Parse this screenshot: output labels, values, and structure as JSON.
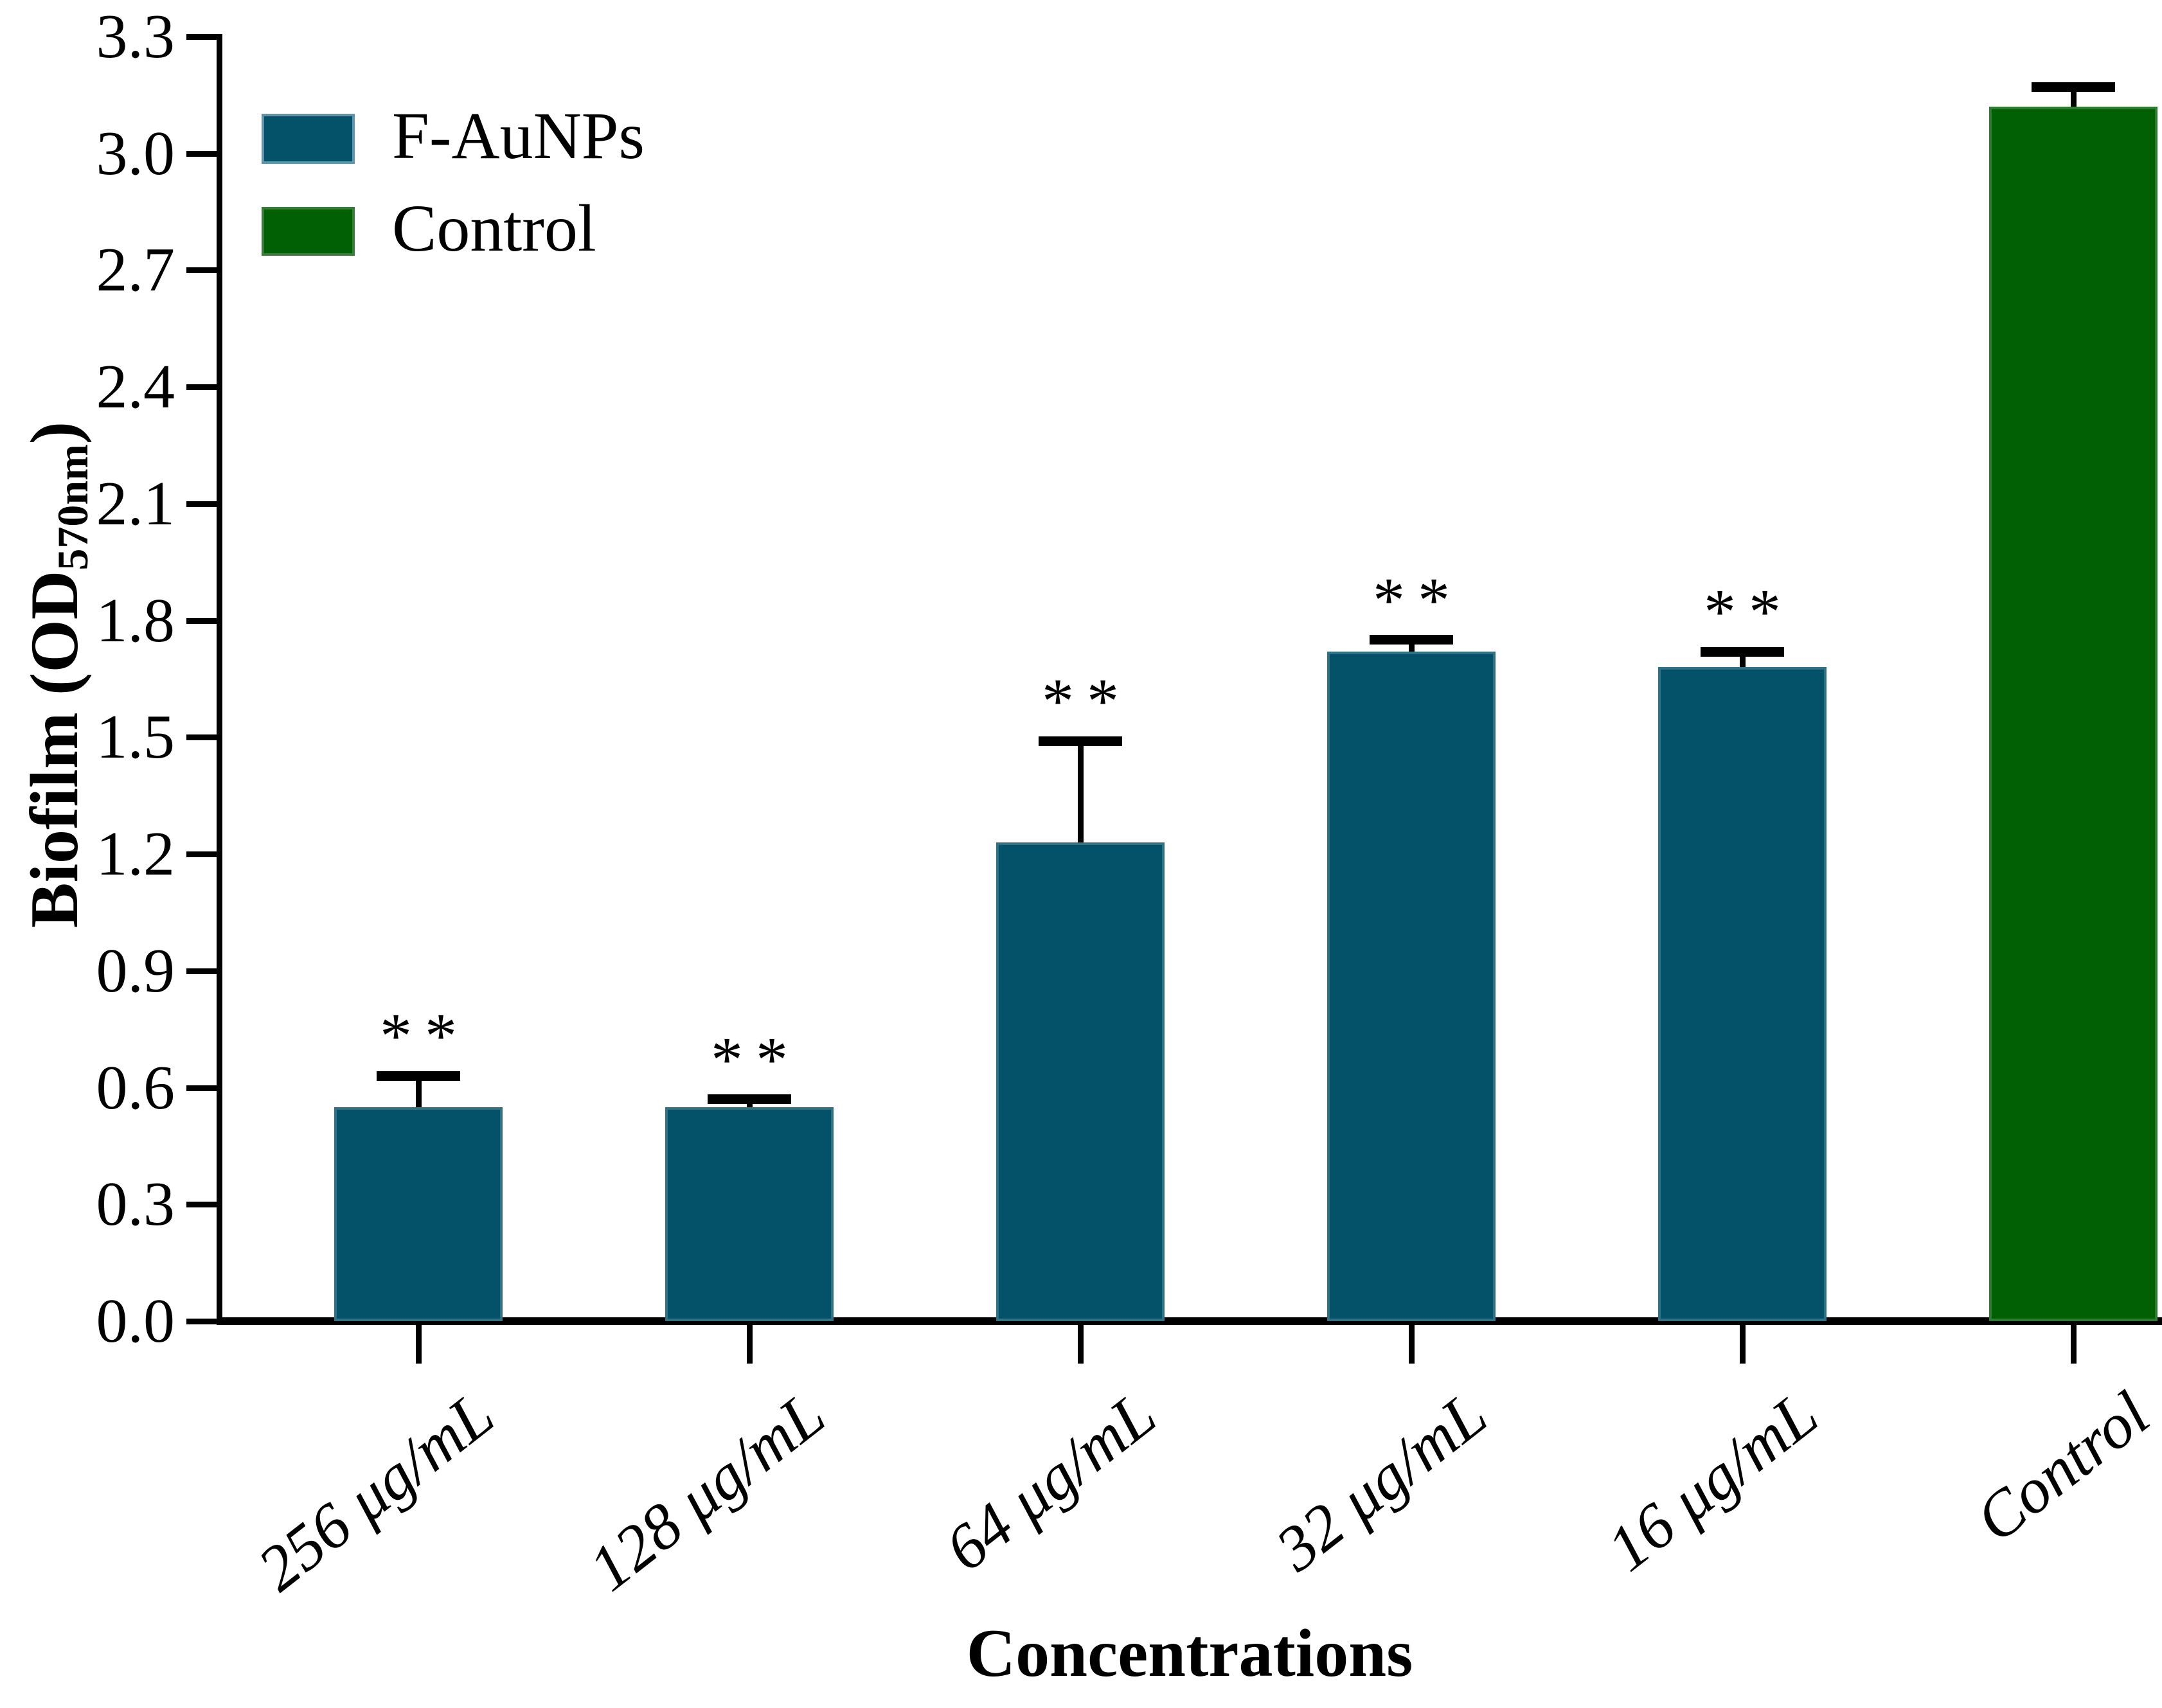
{
  "figure": {
    "xlabel": "Concentrations",
    "ylabel_prefix": "Biofilm (OD",
    "ylabel_sub": "570nm",
    "ylabel_suffix": ")"
  },
  "legend": {
    "position": "top-left",
    "items": [
      {
        "label": "F-AuNPs",
        "color": "#045269",
        "border": "#5f95aa"
      },
      {
        "label": "Control",
        "color": "#016004",
        "border": "#357d39"
      }
    ]
  },
  "chart_data": {
    "type": "bar",
    "title": "",
    "xlabel": "Concentrations",
    "ylabel": "Biofilm (OD570nm)",
    "ylim": [
      0.0,
      3.3
    ],
    "ytick_step": 0.3,
    "yticks": [
      "0.0",
      "0.3",
      "0.6",
      "0.9",
      "1.2",
      "1.5",
      "1.8",
      "2.1",
      "2.4",
      "2.7",
      "3.0",
      "3.3"
    ],
    "grid": false,
    "legend_position": "top-left",
    "categories": [
      "256 μg/mL",
      "128 μg/mL",
      "64 μg/mL",
      "32 μg/mL",
      "16 μg/mL",
      "Control"
    ],
    "series_colors": {
      "F-AuNPs": "#045269",
      "Control": "#016004"
    },
    "bars": [
      {
        "label": "256 μg/mL",
        "series": "F-AuNPs",
        "value": 0.55,
        "error_plus": 0.08,
        "significance": "**"
      },
      {
        "label": "128 μg/mL",
        "series": "F-AuNPs",
        "value": 0.55,
        "error_plus": 0.02,
        "significance": "**"
      },
      {
        "label": "64 μg/mL",
        "series": "F-AuNPs",
        "value": 1.23,
        "error_plus": 0.26,
        "significance": "**"
      },
      {
        "label": "32 μg/mL",
        "series": "F-AuNPs",
        "value": 1.72,
        "error_plus": 0.03,
        "significance": "**"
      },
      {
        "label": "16 μg/mL",
        "series": "F-AuNPs",
        "value": 1.68,
        "error_plus": 0.04,
        "significance": "**"
      },
      {
        "label": "Control",
        "series": "Control",
        "value": 3.12,
        "error_plus": 0.05,
        "significance": ""
      }
    ]
  }
}
